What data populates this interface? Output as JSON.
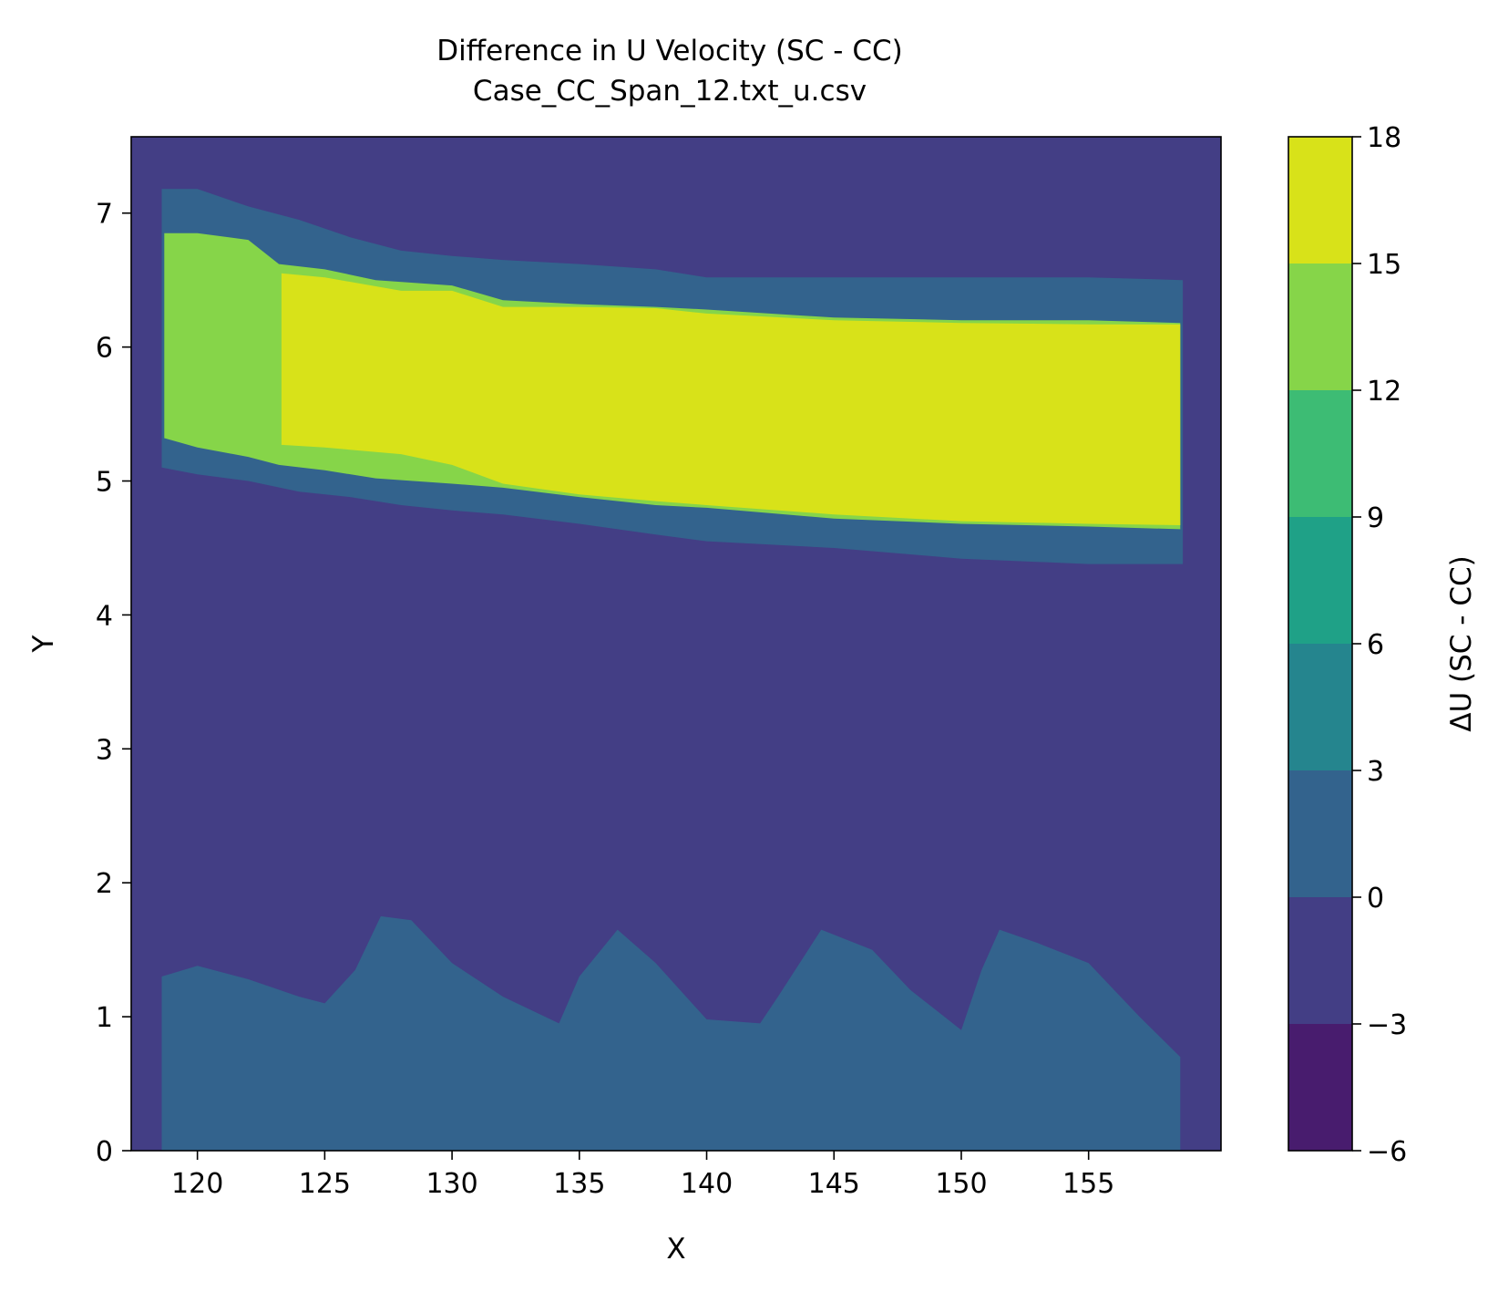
{
  "chart_data": {
    "type": "contour",
    "title": "Difference in U Velocity (SC - CC)",
    "subtitle": "Case_CC_Span_12.txt_u.csv",
    "xlabel": "X",
    "ylabel": "Y",
    "xlim": [
      117.4,
      160.2
    ],
    "ylim": [
      0,
      7.57
    ],
    "xticks": [
      120,
      125,
      130,
      135,
      140,
      145,
      150,
      155
    ],
    "yticks": [
      0,
      1,
      2,
      3,
      4,
      5,
      6,
      7
    ],
    "grid": false,
    "colorbar": {
      "label": "ΔU (SC - CC)",
      "levels": [
        -6,
        -3,
        0,
        3,
        6,
        9,
        12,
        15,
        18
      ],
      "tick_labels": [
        "−6",
        "−3",
        "0",
        "3",
        "6",
        "9",
        "12",
        "15",
        "18"
      ],
      "colors": [
        "#481c6e",
        "#433e85",
        "#33638d",
        "#25858e",
        "#1fa187",
        "#3dbc74",
        "#86d549",
        "#d8e219"
      ]
    },
    "background_level_color": "#433e85",
    "regions": [
      {
        "name": "near-wall band",
        "range": [
          0,
          3
        ],
        "color": "#33638d",
        "x": [
          118.6,
          120,
          122,
          124,
          125,
          126.2,
          127.2,
          128.4,
          130,
          132,
          134.2,
          135,
          136.5,
          138,
          140,
          142.1,
          142.8,
          144.5,
          146.5,
          148,
          150,
          150.8,
          151.5,
          153,
          155,
          157,
          158.6
        ],
        "top_y": [
          1.3,
          1.38,
          1.28,
          1.15,
          1.1,
          1.35,
          1.75,
          1.72,
          1.4,
          1.15,
          0.95,
          1.3,
          1.65,
          1.4,
          0.98,
          0.95,
          1.15,
          1.65,
          1.5,
          1.2,
          0.9,
          1.35,
          1.65,
          1.55,
          1.4,
          1.0,
          0.7
        ]
      },
      {
        "name": "upper shear layer outer",
        "range": [
          0,
          3
        ],
        "color": "#33638d",
        "x": [
          118.6,
          120,
          122,
          124,
          126,
          128,
          130,
          132,
          135,
          138,
          140,
          145,
          150,
          155,
          158.7
        ],
        "top_y": [
          7.18,
          7.18,
          7.05,
          6.95,
          6.82,
          6.72,
          6.68,
          6.65,
          6.62,
          6.58,
          6.52,
          6.52,
          6.52,
          6.52,
          6.5
        ],
        "bottom_y": [
          5.1,
          5.05,
          5.0,
          4.92,
          4.88,
          4.82,
          4.78,
          4.75,
          4.68,
          4.6,
          4.55,
          4.5,
          4.42,
          4.38,
          4.38
        ]
      },
      {
        "name": "jet core edge",
        "range": [
          12,
          15
        ],
        "color": "#86d549",
        "x": [
          118.7,
          120,
          122,
          123.2,
          125,
          127,
          130,
          132,
          135,
          138,
          140,
          145,
          150,
          155,
          158.6
        ],
        "top_y": [
          6.85,
          6.85,
          6.8,
          6.62,
          6.58,
          6.5,
          6.46,
          6.35,
          6.32,
          6.3,
          6.28,
          6.22,
          6.2,
          6.2,
          6.18
        ],
        "bottom_y": [
          5.32,
          5.25,
          5.18,
          5.12,
          5.08,
          5.02,
          4.98,
          4.95,
          4.88,
          4.82,
          4.8,
          4.72,
          4.68,
          4.66,
          4.64
        ]
      },
      {
        "name": "jet core",
        "range": [
          15,
          18
        ],
        "color": "#d8e219",
        "x": [
          123.3,
          125,
          128,
          130,
          132,
          135,
          138,
          140,
          145,
          150,
          155,
          158.6
        ],
        "top_y": [
          6.55,
          6.52,
          6.42,
          6.42,
          6.3,
          6.3,
          6.29,
          6.25,
          6.2,
          6.18,
          6.17,
          6.17
        ],
        "bottom_y": [
          5.27,
          5.25,
          5.2,
          5.12,
          4.98,
          4.9,
          4.85,
          4.82,
          4.75,
          4.7,
          4.68,
          4.67
        ]
      }
    ]
  }
}
